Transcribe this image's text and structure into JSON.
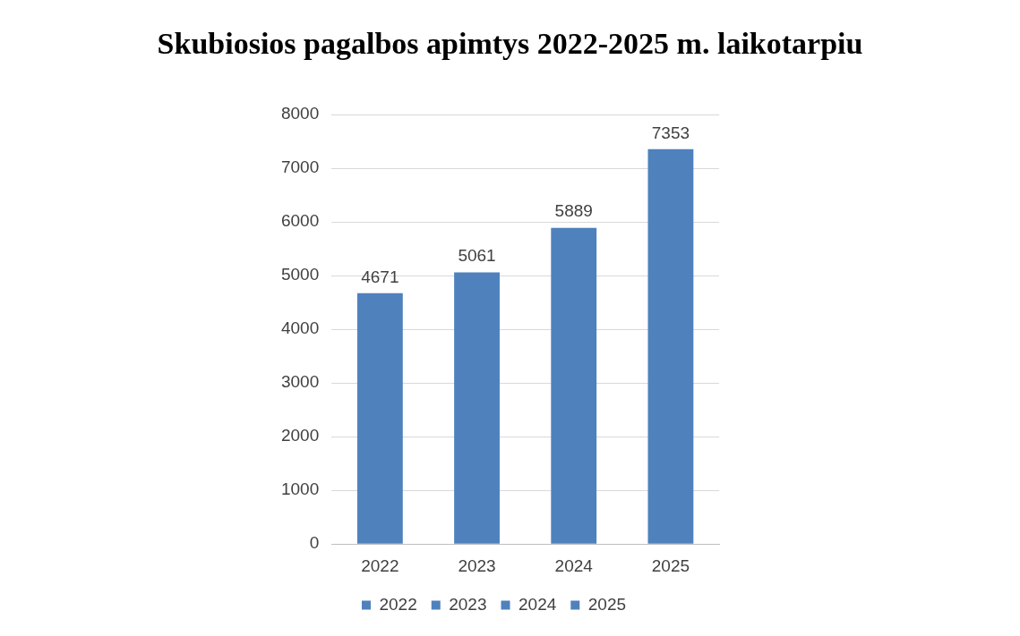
{
  "chart_data": {
    "type": "bar",
    "title": "Skubiosios pagalbos apimtys 2022-2025 m. laikotarpiu",
    "categories": [
      "2022",
      "2023",
      "2024",
      "2025"
    ],
    "series": [
      {
        "name": "2022",
        "color": "#4f81bd",
        "values": [
          4671,
          null,
          null,
          null
        ]
      },
      {
        "name": "2023",
        "color": "#4f81bd",
        "values": [
          null,
          5061,
          null,
          null
        ]
      },
      {
        "name": "2024",
        "color": "#4f81bd",
        "values": [
          null,
          null,
          5889,
          null
        ]
      },
      {
        "name": "2025",
        "color": "#4f81bd",
        "values": [
          null,
          null,
          null,
          7353
        ]
      }
    ],
    "ylim": [
      0,
      8000
    ],
    "yticks": [
      0,
      1000,
      2000,
      3000,
      4000,
      5000,
      6000,
      7000,
      8000
    ],
    "grid": "y",
    "legend": "bottom",
    "data_labels": true
  }
}
